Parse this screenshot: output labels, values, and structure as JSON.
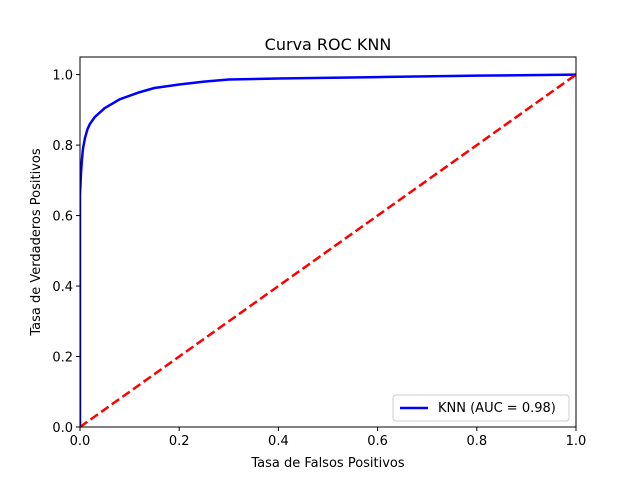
{
  "chart_data": {
    "type": "line",
    "title": "Curva ROC KNN",
    "xlabel": "Tasa de Falsos Positivos",
    "ylabel": "Tasa de Verdaderos Positivos",
    "xlim": [
      0.0,
      1.0
    ],
    "ylim": [
      0.0,
      1.05
    ],
    "xticks": [
      0.0,
      0.2,
      0.4,
      0.6,
      0.8,
      1.0
    ],
    "yticks": [
      0.0,
      0.2,
      0.4,
      0.6,
      0.8,
      1.0
    ],
    "xtick_labels": [
      "0.0",
      "0.2",
      "0.4",
      "0.6",
      "0.8",
      "1.0"
    ],
    "ytick_labels": [
      "0.0",
      "0.2",
      "0.4",
      "0.6",
      "0.8",
      "1.0"
    ],
    "grid": false,
    "legend_position": "lower-right",
    "series": [
      {
        "name": "KNN (AUC = 0.98)",
        "color": "#0000ff",
        "style": "solid",
        "x": [
          0.0,
          0.0,
          0.002,
          0.004,
          0.006,
          0.01,
          0.015,
          0.02,
          0.03,
          0.05,
          0.08,
          0.12,
          0.15,
          0.2,
          0.25,
          0.3,
          0.4,
          0.6,
          0.8,
          1.0
        ],
        "y": [
          0.0,
          0.66,
          0.72,
          0.76,
          0.79,
          0.82,
          0.845,
          0.86,
          0.88,
          0.905,
          0.93,
          0.95,
          0.962,
          0.972,
          0.98,
          0.986,
          0.989,
          0.993,
          0.997,
          1.0
        ]
      },
      {
        "name": "",
        "color": "#ff0000",
        "style": "dashed",
        "x": [
          0.0,
          1.0
        ],
        "y": [
          0.0,
          1.0
        ]
      }
    ]
  }
}
